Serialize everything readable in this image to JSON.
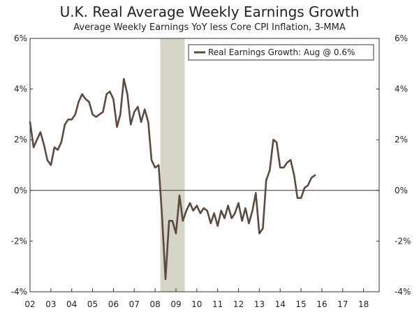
{
  "chart_data": {
    "type": "line",
    "title": "U.K. Real Average Weekly Earnings Growth",
    "subtitle": "Average Weekly Earnings YoY less Core CPI Inflation, 3-MMA",
    "legend": {
      "label": "Real Earnings Growth: Aug @ 0.6%",
      "placement": "top-right"
    },
    "x_range": [
      2002.0,
      2018.75
    ],
    "y_range": [
      -4,
      6
    ],
    "x_ticks": [
      "02",
      "03",
      "04",
      "05",
      "06",
      "07",
      "08",
      "09",
      "10",
      "11",
      "12",
      "13",
      "14",
      "15",
      "16",
      "17",
      "18"
    ],
    "y_ticks_left": [
      "6%",
      "4%",
      "2%",
      "0%",
      "-2%",
      "-4%"
    ],
    "y_ticks_right": [
      "6%",
      "4%",
      "2%",
      "0%",
      "-2%",
      "-4%"
    ],
    "recession_shading": {
      "x_start": 2008.25,
      "x_end": 2009.42,
      "color": "#d6d6c8"
    },
    "grid": false,
    "series": [
      {
        "name": "Real Earnings Growth",
        "color": "#5a4a3f",
        "points": [
          [
            2002.0,
            2.7
          ],
          [
            2002.17,
            1.7
          ],
          [
            2002.33,
            2.0
          ],
          [
            2002.5,
            2.3
          ],
          [
            2002.67,
            1.8
          ],
          [
            2002.83,
            1.2
          ],
          [
            2003.0,
            1.0
          ],
          [
            2003.17,
            1.7
          ],
          [
            2003.33,
            1.6
          ],
          [
            2003.5,
            1.9
          ],
          [
            2003.67,
            2.6
          ],
          [
            2003.83,
            2.8
          ],
          [
            2004.0,
            2.8
          ],
          [
            2004.17,
            3.0
          ],
          [
            2004.33,
            3.5
          ],
          [
            2004.5,
            3.8
          ],
          [
            2004.67,
            3.6
          ],
          [
            2004.83,
            3.5
          ],
          [
            2005.0,
            3.0
          ],
          [
            2005.17,
            2.9
          ],
          [
            2005.33,
            3.0
          ],
          [
            2005.5,
            3.1
          ],
          [
            2005.67,
            3.8
          ],
          [
            2005.83,
            3.9
          ],
          [
            2006.0,
            3.6
          ],
          [
            2006.17,
            2.5
          ],
          [
            2006.33,
            3.0
          ],
          [
            2006.5,
            4.4
          ],
          [
            2006.67,
            3.8
          ],
          [
            2006.83,
            2.6
          ],
          [
            2007.0,
            3.1
          ],
          [
            2007.17,
            3.3
          ],
          [
            2007.33,
            2.7
          ],
          [
            2007.5,
            3.2
          ],
          [
            2007.67,
            2.7
          ],
          [
            2007.83,
            1.2
          ],
          [
            2008.0,
            0.9
          ],
          [
            2008.17,
            1.0
          ],
          [
            2008.33,
            -1.0
          ],
          [
            2008.5,
            -3.5
          ],
          [
            2008.67,
            -1.2
          ],
          [
            2008.83,
            -1.2
          ],
          [
            2009.0,
            -1.7
          ],
          [
            2009.17,
            -0.2
          ],
          [
            2009.33,
            -1.2
          ],
          [
            2009.5,
            -0.8
          ],
          [
            2009.67,
            -0.5
          ],
          [
            2009.83,
            -0.8
          ],
          [
            2010.0,
            -0.6
          ],
          [
            2010.17,
            -0.9
          ],
          [
            2010.33,
            -0.7
          ],
          [
            2010.5,
            -0.8
          ],
          [
            2010.67,
            -1.3
          ],
          [
            2010.83,
            -0.9
          ],
          [
            2011.0,
            -1.4
          ],
          [
            2011.17,
            -0.8
          ],
          [
            2011.33,
            -1.1
          ],
          [
            2011.5,
            -0.6
          ],
          [
            2011.67,
            -1.1
          ],
          [
            2011.83,
            -0.9
          ],
          [
            2012.0,
            -0.5
          ],
          [
            2012.17,
            -1.2
          ],
          [
            2012.33,
            -0.7
          ],
          [
            2012.5,
            -1.3
          ],
          [
            2012.67,
            -0.8
          ],
          [
            2012.83,
            -0.1
          ],
          [
            2013.0,
            -1.7
          ],
          [
            2013.17,
            -1.5
          ],
          [
            2013.33,
            0.4
          ],
          [
            2013.5,
            0.8
          ],
          [
            2013.67,
            2.0
          ],
          [
            2013.83,
            1.9
          ],
          [
            2014.0,
            0.9
          ],
          [
            2014.17,
            0.9
          ],
          [
            2014.33,
            1.1
          ],
          [
            2014.5,
            1.2
          ],
          [
            2014.67,
            0.6
          ],
          [
            2014.83,
            -0.3
          ],
          [
            2015.0,
            -0.3
          ],
          [
            2015.17,
            0.1
          ],
          [
            2015.33,
            0.2
          ],
          [
            2015.5,
            0.5
          ],
          [
            2015.67,
            0.6
          ]
        ]
      }
    ]
  }
}
